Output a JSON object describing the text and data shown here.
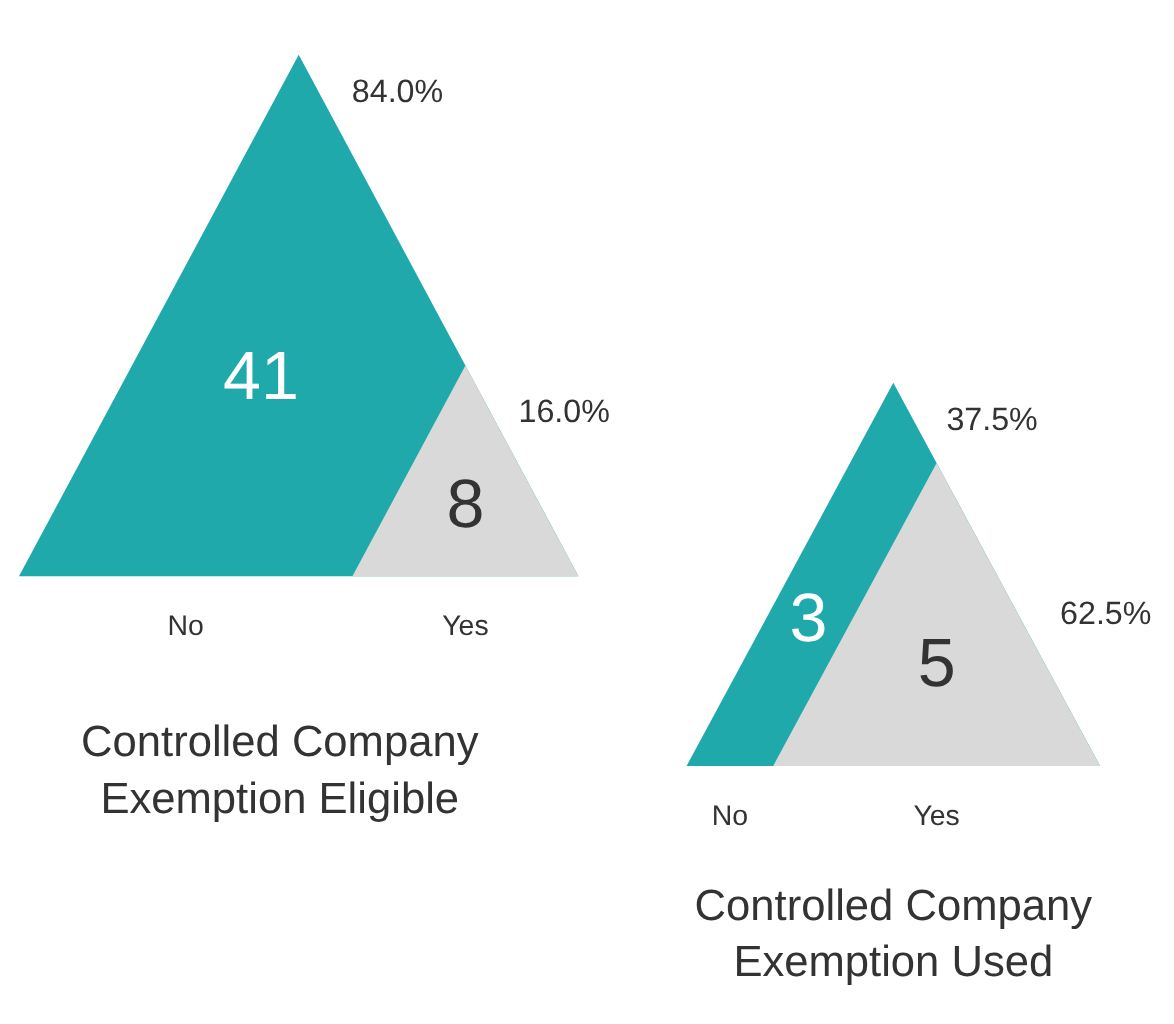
{
  "chart_data": [
    {
      "type": "other",
      "title": "Controlled Company Exemption Eligible",
      "categories": [
        "No",
        "Yes"
      ],
      "values": [
        41,
        8
      ],
      "colors": [
        "#1fa9aa",
        "#d9d9d9"
      ],
      "data_labels": true,
      "annotations": [
        {
          "text": "84.0%",
          "x": "No"
        },
        {
          "text": "16.0%",
          "x": "Yes"
        }
      ]
    },
    {
      "type": "other",
      "title": "Controlled Company Exemption Used",
      "categories": [
        "No",
        "Yes"
      ],
      "values": [
        3,
        5
      ],
      "colors": [
        "#1fa9aa",
        "#d9d9d9"
      ],
      "data_labels": true,
      "annotations": [
        {
          "text": "37.5%",
          "x": "No"
        },
        {
          "text": "62.5%",
          "x": "Yes"
        }
      ]
    }
  ]
}
